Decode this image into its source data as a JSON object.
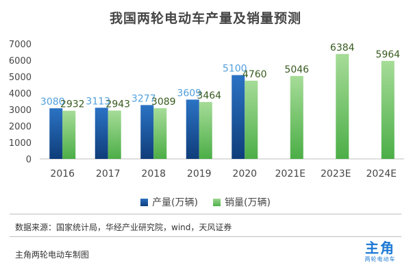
{
  "chart_data": {
    "type": "bar",
    "title": "我国两轮电动车产量及销量预测",
    "categories": [
      "2016",
      "2017",
      "2018",
      "2019",
      "2020",
      "2021E",
      "2023E",
      "2024E"
    ],
    "series": [
      {
        "name": "产量(万辆)",
        "values": [
          3080,
          3113,
          3277,
          3609,
          5100,
          null,
          null,
          null
        ],
        "color": "#1e5aa8",
        "label_color": "#4f9fdc"
      },
      {
        "name": "销量(万辆)",
        "values": [
          2932,
          2943,
          3089,
          3464,
          4760,
          5046,
          6384,
          5964
        ],
        "color": "#6cc163",
        "label_color": "#375a1e"
      }
    ],
    "ylim": [
      0,
      7000
    ],
    "yticks": [
      0,
      1000,
      2000,
      3000,
      4000,
      5000,
      6000,
      7000
    ],
    "grid": false,
    "legend_position": "bottom"
  },
  "source_text": "数据来源：国家统计局，华经产业研究院，wind，天风证券",
  "footer_text": "主角两轮电动车制图",
  "logo": {
    "main": "主角",
    "sub": "两轮电动车"
  }
}
